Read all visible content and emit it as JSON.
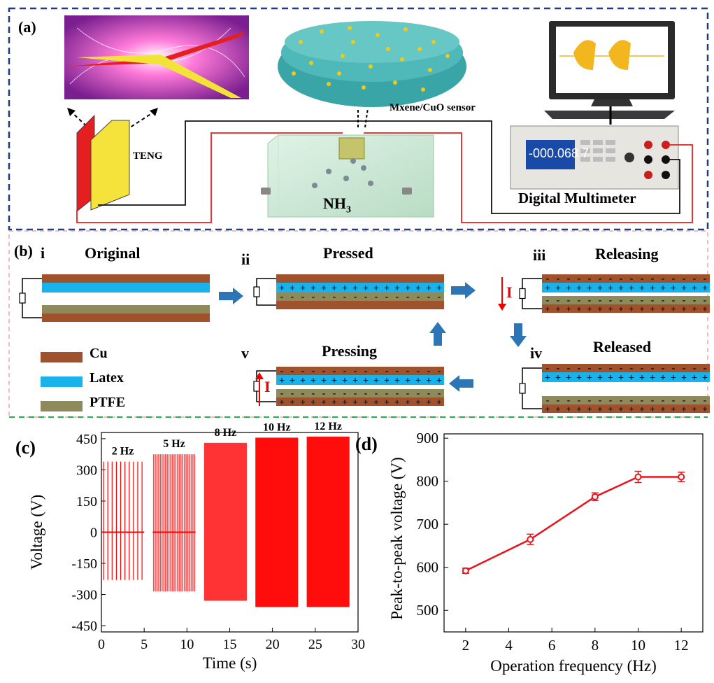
{
  "panel_a": {
    "label": "(a)",
    "teng_label": "TENG",
    "sensor_label": "Mxene/CuO sensor",
    "gas_label": "NH",
    "gas_sub": "3",
    "dmm_label": "Digital Multimeter",
    "dmm_display": "-000.068 7"
  },
  "panel_b": {
    "label": "(b)",
    "stages": [
      {
        "roman": "i",
        "title": "Original"
      },
      {
        "roman": "ii",
        "title": "Pressed"
      },
      {
        "roman": "iii",
        "title": "Releasing"
      },
      {
        "roman": "iv",
        "title": "Released"
      },
      {
        "roman": "v",
        "title": "Pressing"
      }
    ],
    "current_symbol": "I",
    "legend": [
      {
        "name": "Cu",
        "color": "#a0522d"
      },
      {
        "name": "Latex",
        "color": "#1ab2ea"
      },
      {
        "name": "PTFE",
        "color": "#8e8a5c"
      }
    ]
  },
  "chart_data": [
    {
      "panel": "(c)",
      "type": "line",
      "xlabel": "Time (s)",
      "ylabel": "Voltage (V)",
      "xlim": [
        0,
        30
      ],
      "ylim": [
        -480,
        480
      ],
      "xticks": [
        0,
        5,
        10,
        15,
        20,
        25,
        30
      ],
      "yticks": [
        -450,
        -300,
        -150,
        0,
        150,
        300,
        450
      ],
      "series": [
        {
          "name": "2 Hz",
          "t_range": [
            0,
            5
          ],
          "vmax": 340,
          "vmin": -230
        },
        {
          "name": "5 Hz",
          "t_range": [
            6,
            11
          ],
          "vmax": 375,
          "vmin": -285
        },
        {
          "name": "8 Hz",
          "t_range": [
            12,
            17
          ],
          "vmax": 430,
          "vmin": -330
        },
        {
          "name": "10 Hz",
          "t_range": [
            18,
            23
          ],
          "vmax": 455,
          "vmin": -360
        },
        {
          "name": "12 Hz",
          "t_range": [
            24,
            29
          ],
          "vmax": 460,
          "vmin": -360
        }
      ],
      "color": "#ff0000"
    },
    {
      "panel": "(d)",
      "type": "line",
      "xlabel": "Operation frequency (Hz)",
      "ylabel": "Peak-to-peak voltage (V)",
      "xlim": [
        1,
        13
      ],
      "ylim": [
        450,
        910
      ],
      "xticks": [
        2,
        4,
        6,
        8,
        10,
        12
      ],
      "yticks": [
        500,
        600,
        700,
        800,
        900
      ],
      "x": [
        2,
        5,
        8,
        10,
        12
      ],
      "y": [
        592,
        665,
        764,
        810,
        810
      ],
      "err": [
        6,
        12,
        9,
        13,
        11
      ],
      "color": "#e8141b"
    }
  ]
}
